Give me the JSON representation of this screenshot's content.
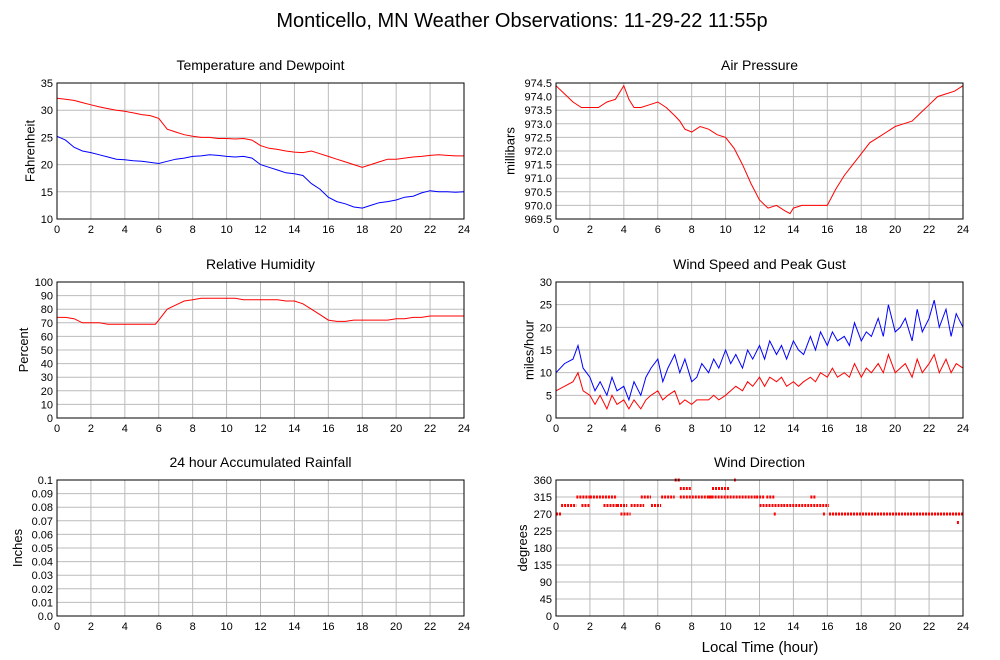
{
  "page_title": "Monticello, MN Weather Observations: 11-29-22 11:55p",
  "x_axis_label": "Local Time (hour)",
  "colors": {
    "primary_line": "#ff0000",
    "secondary_line": "#0000ff",
    "grid": "#bbbbbb",
    "frame": "#000000"
  },
  "chart_data": [
    {
      "type": "line",
      "title": "Temperature and Dewpoint",
      "ylabel": "Fahrenheit",
      "xlim": [
        0,
        24
      ],
      "ylim": [
        10,
        35
      ],
      "x_ticks": [
        "0",
        "2",
        "4",
        "6",
        "8",
        "10",
        "12",
        "14",
        "16",
        "18",
        "20",
        "22",
        "24"
      ],
      "y_ticks": [
        "10",
        "15",
        "20",
        "25",
        "30",
        "35"
      ],
      "grid": true,
      "series": [
        {
          "color": "#ff0000",
          "x": [
            0,
            0.5,
            1,
            1.5,
            2,
            2.5,
            3,
            3.5,
            4,
            4.5,
            5,
            5.5,
            6,
            6.5,
            7,
            7.5,
            8,
            8.5,
            9,
            9.5,
            10,
            10.5,
            11,
            11.5,
            12,
            12.5,
            13,
            13.5,
            14,
            14.5,
            15,
            15.5,
            16,
            16.5,
            17,
            17.5,
            18,
            18.5,
            19,
            19.5,
            20,
            20.5,
            21,
            21.5,
            22,
            22.5,
            23,
            23.5,
            24
          ],
          "y": [
            32.2,
            32,
            31.8,
            31.4,
            31,
            30.6,
            30.3,
            30,
            29.8,
            29.5,
            29.2,
            29,
            28.5,
            26.5,
            26,
            25.5,
            25.2,
            25,
            25,
            24.8,
            24.8,
            24.7,
            24.8,
            24.5,
            23.5,
            23,
            22.8,
            22.5,
            22.3,
            22.2,
            22.5,
            22,
            21.5,
            21,
            20.5,
            20,
            19.5,
            20,
            20.5,
            21,
            21,
            21.2,
            21.4,
            21.5,
            21.7,
            21.8,
            21.7,
            21.6,
            21.6
          ]
        },
        {
          "color": "#0000ff",
          "x": [
            0,
            0.5,
            1,
            1.5,
            2,
            2.5,
            3,
            3.5,
            4,
            4.5,
            5,
            5.5,
            6,
            6.5,
            7,
            7.5,
            8,
            8.5,
            9,
            9.5,
            10,
            10.5,
            11,
            11.5,
            12,
            12.5,
            13,
            13.5,
            14,
            14.5,
            15,
            15.5,
            16,
            16.5,
            17,
            17.5,
            18,
            18.5,
            19,
            19.5,
            20,
            20.5,
            21,
            21.5,
            22,
            22.5,
            23,
            23.5,
            24
          ],
          "y": [
            25.2,
            24.5,
            23.2,
            22.5,
            22.2,
            21.8,
            21.4,
            21,
            20.9,
            20.7,
            20.6,
            20.4,
            20.2,
            20.6,
            21,
            21.2,
            21.5,
            21.6,
            21.8,
            21.7,
            21.5,
            21.4,
            21.5,
            21.2,
            20,
            19.5,
            19,
            18.5,
            18.3,
            18,
            16.5,
            15.5,
            14,
            13.2,
            12.8,
            12.2,
            12,
            12.5,
            13,
            13.2,
            13.5,
            14,
            14.2,
            14.8,
            15.2,
            15,
            15,
            14.9,
            15
          ]
        }
      ]
    },
    {
      "type": "line",
      "title": "Air Pressure",
      "ylabel": "millibars",
      "xlim": [
        0,
        24
      ],
      "ylim": [
        969.5,
        974.5
      ],
      "x_ticks": [
        "0",
        "2",
        "4",
        "6",
        "8",
        "10",
        "12",
        "14",
        "16",
        "18",
        "20",
        "22",
        "24"
      ],
      "y_ticks": [
        "969.5",
        "970.0",
        "970.5",
        "971.0",
        "971.5",
        "972.0",
        "972.5",
        "973.0",
        "973.5",
        "974.0",
        "974.5"
      ],
      "grid": true,
      "series": [
        {
          "color": "#ff0000",
          "x": [
            0,
            0.5,
            1,
            1.5,
            2,
            2.5,
            3,
            3.5,
            4,
            4.3,
            4.6,
            5,
            5.5,
            6,
            6.5,
            7,
            7.3,
            7.6,
            8,
            8.5,
            9,
            9.5,
            10,
            10.5,
            11,
            11.5,
            12,
            12.5,
            13,
            13.5,
            13.8,
            14,
            14.5,
            15,
            15.5,
            16,
            16.5,
            17,
            17.5,
            18,
            18.5,
            19,
            19.5,
            20,
            20.5,
            21,
            21.5,
            22,
            22.5,
            23,
            23.5,
            24
          ],
          "y": [
            974.4,
            974.1,
            973.8,
            973.6,
            973.6,
            973.6,
            973.8,
            973.9,
            974.4,
            973.9,
            973.6,
            973.6,
            973.7,
            973.8,
            973.6,
            973.3,
            973.1,
            972.8,
            972.7,
            972.9,
            972.8,
            972.6,
            972.5,
            972.1,
            971.5,
            970.8,
            970.2,
            969.9,
            970,
            969.8,
            969.7,
            969.9,
            970,
            970,
            970,
            970,
            970.6,
            971.1,
            971.5,
            971.9,
            972.3,
            972.5,
            972.7,
            972.9,
            973,
            973.1,
            973.4,
            973.7,
            974,
            974.1,
            974.2,
            974.4
          ]
        }
      ]
    },
    {
      "type": "line",
      "title": "Relative Humidity",
      "ylabel": "Percent",
      "xlim": [
        0,
        24
      ],
      "ylim": [
        0,
        100
      ],
      "x_ticks": [
        "0",
        "2",
        "4",
        "6",
        "8",
        "10",
        "12",
        "14",
        "16",
        "18",
        "20",
        "22",
        "24"
      ],
      "y_ticks": [
        "0",
        "10",
        "20",
        "30",
        "40",
        "50",
        "60",
        "70",
        "80",
        "90",
        "100"
      ],
      "grid": true,
      "series": [
        {
          "color": "#ff0000",
          "x": [
            0,
            0.5,
            1,
            1.5,
            2,
            2.5,
            3,
            3.5,
            4,
            4.5,
            5,
            5.5,
            5.8,
            6,
            6.5,
            7,
            7.5,
            8,
            8.5,
            9,
            9.5,
            10,
            10.5,
            11,
            11.5,
            12,
            12.5,
            13,
            13.5,
            14,
            14.5,
            15,
            15.5,
            16,
            16.5,
            17,
            17.5,
            18,
            18.5,
            19,
            19.5,
            20,
            20.5,
            21,
            21.5,
            22,
            22.5,
            23,
            23.5,
            24
          ],
          "y": [
            74,
            74,
            73,
            70,
            70,
            70,
            69,
            69,
            69,
            69,
            69,
            69,
            69,
            72,
            80,
            83,
            86,
            87,
            88,
            88,
            88,
            88,
            88,
            87,
            87,
            87,
            87,
            87,
            86,
            86,
            84,
            80,
            76,
            72,
            71,
            71,
            72,
            72,
            72,
            72,
            72,
            73,
            73,
            74,
            74,
            75,
            75,
            75,
            75,
            75
          ]
        }
      ]
    },
    {
      "type": "line",
      "title": "Wind Speed and Peak Gust",
      "ylabel": "miles/hour",
      "xlim": [
        0,
        24
      ],
      "ylim": [
        0,
        30
      ],
      "x_ticks": [
        "0",
        "2",
        "4",
        "6",
        "8",
        "10",
        "12",
        "14",
        "16",
        "18",
        "20",
        "22",
        "24"
      ],
      "y_ticks": [
        "0",
        "5",
        "10",
        "15",
        "20",
        "25",
        "30"
      ],
      "grid": true,
      "series": [
        {
          "color": "#0000ff",
          "x": [
            0,
            0.5,
            1,
            1.3,
            1.6,
            2,
            2.3,
            2.6,
            3,
            3.3,
            3.6,
            4,
            4.3,
            4.6,
            5,
            5.3,
            5.6,
            6,
            6.3,
            6.6,
            7,
            7.3,
            7.6,
            8,
            8.3,
            8.6,
            9,
            9.3,
            9.6,
            10,
            10.3,
            10.6,
            11,
            11.3,
            11.6,
            12,
            12.3,
            12.6,
            13,
            13.3,
            13.6,
            14,
            14.3,
            14.6,
            15,
            15.3,
            15.6,
            16,
            16.3,
            16.6,
            17,
            17.3,
            17.6,
            18,
            18.3,
            18.6,
            19,
            19.3,
            19.6,
            20,
            20.3,
            20.6,
            21,
            21.3,
            21.6,
            22,
            22.3,
            22.6,
            23,
            23.3,
            23.6,
            24
          ],
          "y": [
            10,
            12,
            13,
            16,
            11,
            9,
            6,
            8,
            5,
            9,
            6,
            7,
            4,
            8,
            5,
            9,
            11,
            13,
            8,
            11,
            14,
            10,
            13,
            8,
            9,
            12,
            10,
            13,
            11,
            15,
            12,
            14,
            11,
            15,
            13,
            16,
            13,
            17,
            14,
            16,
            13,
            17,
            15,
            14,
            18,
            15,
            19,
            16,
            19,
            17,
            18,
            16,
            21,
            17,
            19,
            18,
            22,
            18,
            25,
            19,
            20,
            22,
            17,
            24,
            19,
            22,
            26,
            20,
            24,
            18,
            23,
            20
          ]
        },
        {
          "color": "#ff0000",
          "x": [
            0,
            0.5,
            1,
            1.3,
            1.6,
            2,
            2.3,
            2.6,
            3,
            3.3,
            3.6,
            4,
            4.3,
            4.6,
            5,
            5.3,
            5.6,
            6,
            6.3,
            6.6,
            7,
            7.3,
            7.6,
            8,
            8.3,
            8.6,
            9,
            9.3,
            9.6,
            10,
            10.3,
            10.6,
            11,
            11.3,
            11.6,
            12,
            12.3,
            12.6,
            13,
            13.3,
            13.6,
            14,
            14.3,
            14.6,
            15,
            15.3,
            15.6,
            16,
            16.3,
            16.6,
            17,
            17.3,
            17.6,
            18,
            18.3,
            18.6,
            19,
            19.3,
            19.6,
            20,
            20.3,
            20.6,
            21,
            21.3,
            21.6,
            22,
            22.3,
            22.6,
            23,
            23.3,
            23.6,
            24
          ],
          "y": [
            6,
            7,
            8,
            10,
            6,
            5,
            3,
            5,
            2,
            5,
            3,
            4,
            2,
            4,
            2,
            4,
            5,
            6,
            4,
            5,
            6,
            3,
            4,
            3,
            4,
            4,
            4,
            5,
            4,
            5,
            6,
            7,
            6,
            8,
            7,
            9,
            7,
            9,
            8,
            9,
            7,
            8,
            7,
            8,
            9,
            8,
            10,
            9,
            11,
            9,
            10,
            9,
            12,
            9,
            11,
            10,
            12,
            10,
            14,
            10,
            11,
            12,
            9,
            13,
            10,
            12,
            14,
            10,
            13,
            10,
            12,
            11
          ]
        }
      ]
    },
    {
      "type": "line",
      "title": "24 hour Accumulated Rainfall",
      "ylabel": "Inches",
      "xlim": [
        0,
        24
      ],
      "ylim": [
        0,
        0.1
      ],
      "x_ticks": [
        "0",
        "2",
        "4",
        "6",
        "8",
        "10",
        "12",
        "14",
        "16",
        "18",
        "20",
        "22",
        "24"
      ],
      "y_ticks": [
        "0.0",
        "0.01",
        "0.02",
        "0.03",
        "0.04",
        "0.05",
        "0.06",
        "0.07",
        "0.08",
        "0.09",
        "0.1"
      ],
      "grid": true,
      "series": [
        {
          "color": "#ff0000",
          "x": [
            0,
            24
          ],
          "y": [
            0,
            0
          ]
        }
      ]
    },
    {
      "type": "scatter",
      "title": "Wind Direction",
      "ylabel": "degrees",
      "xlabel": "Local Time (hour)",
      "xlim": [
        0,
        24
      ],
      "ylim": [
        0,
        360
      ],
      "x_ticks": [
        "0",
        "2",
        "4",
        "6",
        "8",
        "10",
        "12",
        "14",
        "16",
        "18",
        "20",
        "22",
        "24"
      ],
      "y_ticks": [
        "0",
        "45",
        "90",
        "135",
        "180",
        "225",
        "270",
        "315",
        "360"
      ],
      "grid": true,
      "series": [
        {
          "color": "#ff0000",
          "segments": [
            {
              "x0": 0,
              "x1": 0.3,
              "y": 270
            },
            {
              "x0": 0.3,
              "x1": 1.2,
              "y": 292.5
            },
            {
              "x0": 1.2,
              "x1": 2.0,
              "y": 315
            },
            {
              "x0": 1.5,
              "x1": 2.0,
              "y": 292.5
            },
            {
              "x0": 2.0,
              "x1": 3.6,
              "y": 315
            },
            {
              "x0": 2.8,
              "x1": 3.6,
              "y": 292.5
            },
            {
              "x0": 3.6,
              "x1": 4.2,
              "y": 292.5
            },
            {
              "x0": 3.8,
              "x1": 4.4,
              "y": 270
            },
            {
              "x0": 4.4,
              "x1": 5.2,
              "y": 292.5
            },
            {
              "x0": 5.0,
              "x1": 5.6,
              "y": 315
            },
            {
              "x0": 5.6,
              "x1": 6.2,
              "y": 292.5
            },
            {
              "x0": 6.2,
              "x1": 7.0,
              "y": 315
            },
            {
              "x0": 7.0,
              "x1": 7.3,
              "y": 360
            },
            {
              "x0": 7.3,
              "x1": 8.0,
              "y": 337.5
            },
            {
              "x0": 7.3,
              "x1": 9.2,
              "y": 315
            },
            {
              "x0": 9.2,
              "x1": 10.2,
              "y": 337.5
            },
            {
              "x0": 9.0,
              "x1": 11.8,
              "y": 315
            },
            {
              "x0": 10.5,
              "x1": 10.6,
              "y": 360
            },
            {
              "x0": 11.8,
              "x1": 12.3,
              "y": 315
            },
            {
              "x0": 12.0,
              "x1": 13.4,
              "y": 292.5
            },
            {
              "x0": 12.4,
              "x1": 12.9,
              "y": 315
            },
            {
              "x0": 13.4,
              "x1": 16.1,
              "y": 292.5
            },
            {
              "x0": 15.0,
              "x1": 15.3,
              "y": 315
            },
            {
              "x0": 16.1,
              "x1": 24.0,
              "y": 270
            }
          ],
          "points": [
            {
              "x": 12.9,
              "y": 270
            },
            {
              "x": 15.8,
              "y": 270
            },
            {
              "x": 23.7,
              "y": 247.5
            }
          ]
        }
      ]
    }
  ]
}
